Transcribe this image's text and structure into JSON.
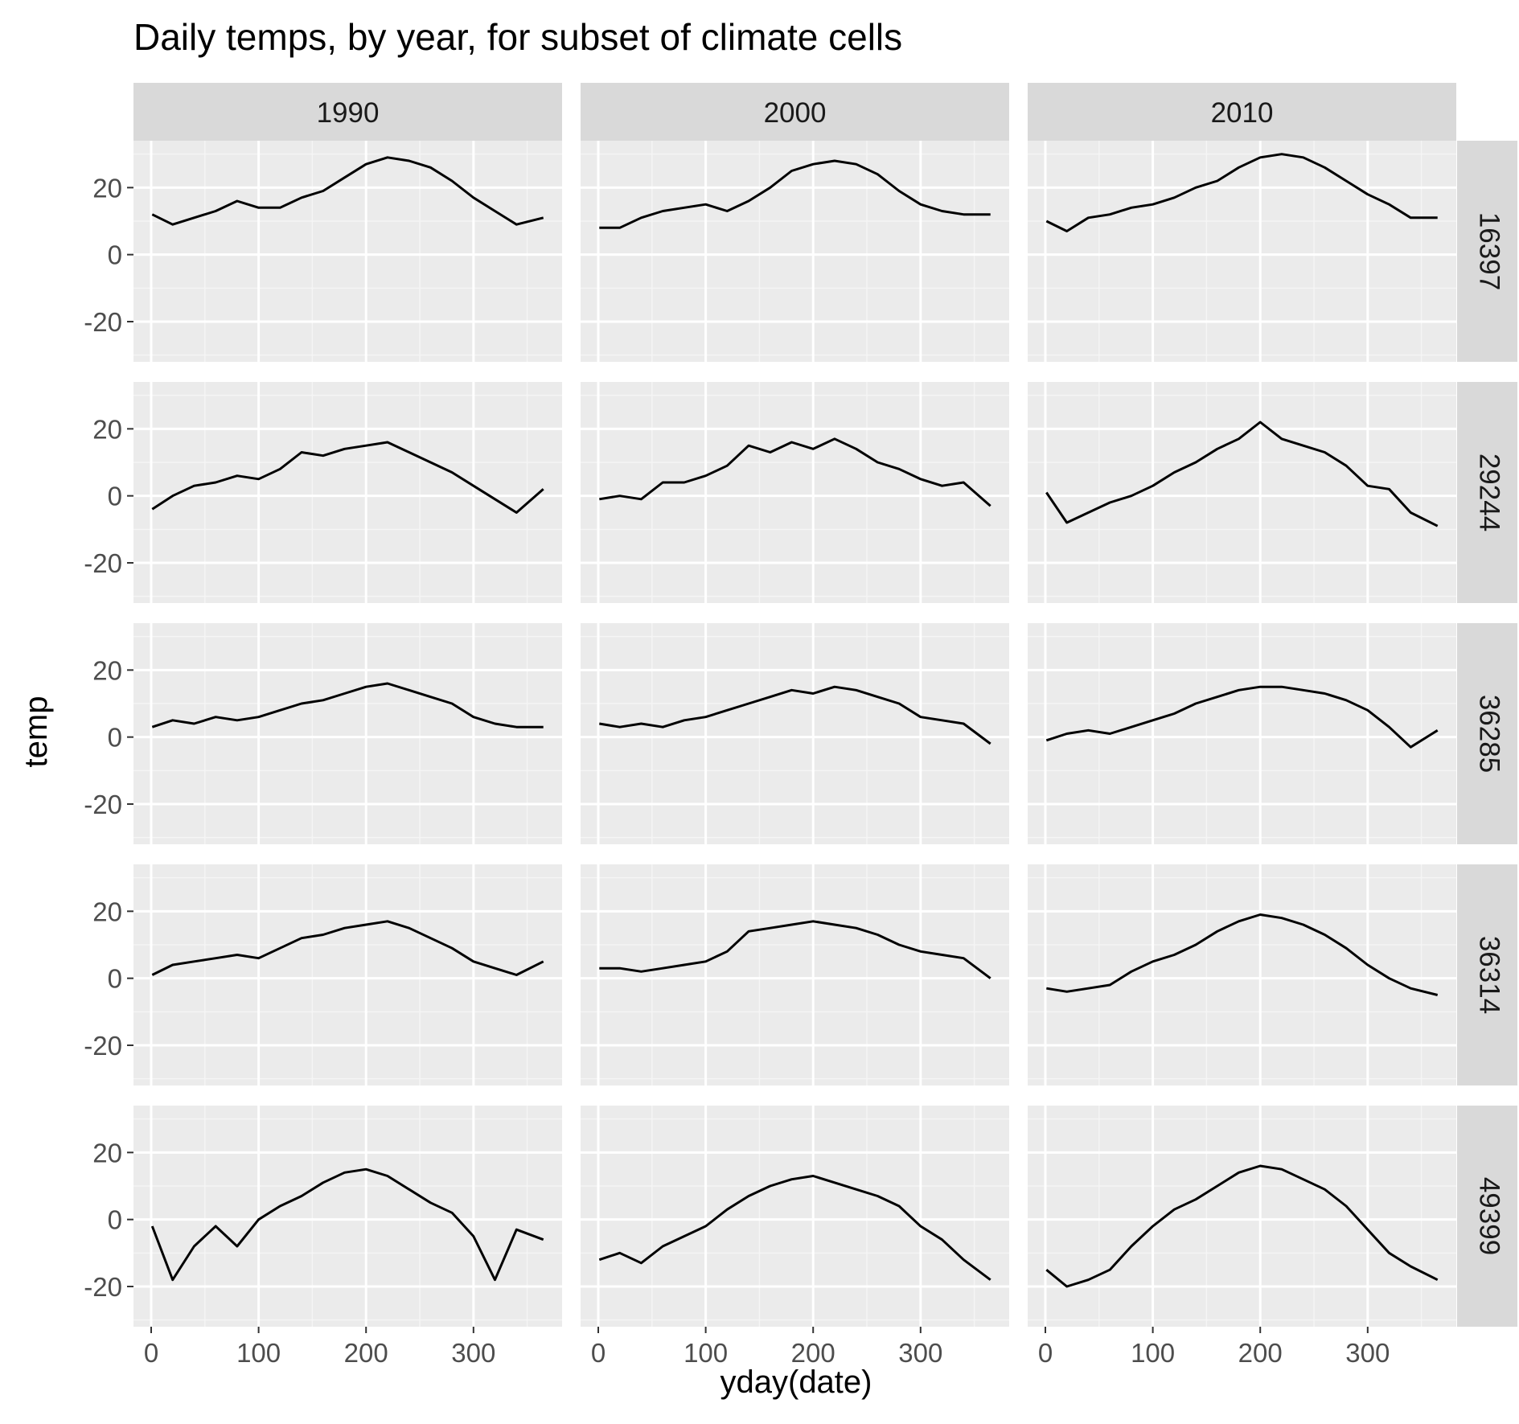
{
  "chart_data": {
    "type": "line",
    "title": "Daily temps, by year, for subset of climate cells",
    "xlabel": "yday(date)",
    "ylabel": "temp",
    "xlim": [
      0,
      366
    ],
    "ylim": [
      -32,
      34
    ],
    "x_ticks": [
      0,
      100,
      200,
      300
    ],
    "y_ticks": [
      -20,
      0,
      20
    ],
    "facet_cols": [
      "1990",
      "2000",
      "2010"
    ],
    "facet_rows": [
      "16397",
      "29244",
      "36285",
      "36314",
      "49399"
    ],
    "line_color": "#000000",
    "grid": true,
    "panel_background": "#ebebeb",
    "strip_background": "#d9d9d9",
    "legend": "none",
    "series_note_x": [
      1,
      20,
      40,
      60,
      80,
      100,
      120,
      140,
      160,
      180,
      200,
      220,
      240,
      260,
      280,
      300,
      320,
      340,
      365
    ],
    "panels": [
      {
        "row": "16397",
        "col": "1990",
        "values": [
          12,
          9,
          11,
          13,
          16,
          14,
          14,
          17,
          19,
          23,
          27,
          29,
          28,
          26,
          22,
          17,
          13,
          9,
          11
        ]
      },
      {
        "row": "16397",
        "col": "2000",
        "values": [
          8,
          8,
          11,
          13,
          14,
          15,
          13,
          16,
          20,
          25,
          27,
          28,
          27,
          24,
          19,
          15,
          13,
          12,
          12
        ]
      },
      {
        "row": "16397",
        "col": "2010",
        "values": [
          10,
          7,
          11,
          12,
          14,
          15,
          17,
          20,
          22,
          26,
          29,
          30,
          29,
          26,
          22,
          18,
          15,
          11,
          11
        ]
      },
      {
        "row": "29244",
        "col": "1990",
        "values": [
          -4,
          0,
          3,
          4,
          6,
          5,
          8,
          13,
          12,
          14,
          15,
          16,
          13,
          10,
          7,
          3,
          -1,
          -5,
          2
        ]
      },
      {
        "row": "29244",
        "col": "2000",
        "values": [
          -1,
          0,
          -1,
          4,
          4,
          6,
          9,
          15,
          13,
          16,
          14,
          17,
          14,
          10,
          8,
          5,
          3,
          4,
          -3
        ]
      },
      {
        "row": "29244",
        "col": "2010",
        "values": [
          1,
          -8,
          -5,
          -2,
          0,
          3,
          7,
          10,
          14,
          17,
          22,
          17,
          15,
          13,
          9,
          3,
          2,
          -5,
          -9
        ]
      },
      {
        "row": "36285",
        "col": "1990",
        "values": [
          3,
          5,
          4,
          6,
          5,
          6,
          8,
          10,
          11,
          13,
          15,
          16,
          14,
          12,
          10,
          6,
          4,
          3,
          3
        ]
      },
      {
        "row": "36285",
        "col": "2000",
        "values": [
          4,
          3,
          4,
          3,
          5,
          6,
          8,
          10,
          12,
          14,
          13,
          15,
          14,
          12,
          10,
          6,
          5,
          4,
          -2
        ]
      },
      {
        "row": "36285",
        "col": "2010",
        "values": [
          -1,
          1,
          2,
          1,
          3,
          5,
          7,
          10,
          12,
          14,
          15,
          15,
          14,
          13,
          11,
          8,
          3,
          -3,
          2
        ]
      },
      {
        "row": "36314",
        "col": "1990",
        "values": [
          1,
          4,
          5,
          6,
          7,
          6,
          9,
          12,
          13,
          15,
          16,
          17,
          15,
          12,
          9,
          5,
          3,
          1,
          5
        ]
      },
      {
        "row": "36314",
        "col": "2000",
        "values": [
          3,
          3,
          2,
          3,
          4,
          5,
          8,
          14,
          15,
          16,
          17,
          16,
          15,
          13,
          10,
          8,
          7,
          6,
          0
        ]
      },
      {
        "row": "36314",
        "col": "2010",
        "values": [
          -3,
          -4,
          -3,
          -2,
          2,
          5,
          7,
          10,
          14,
          17,
          19,
          18,
          16,
          13,
          9,
          4,
          0,
          -3,
          -5
        ]
      },
      {
        "row": "49399",
        "col": "1990",
        "values": [
          -2,
          -18,
          -8,
          -2,
          -8,
          0,
          4,
          7,
          11,
          14,
          15,
          13,
          9,
          5,
          2,
          -5,
          -18,
          -3,
          -6
        ]
      },
      {
        "row": "49399",
        "col": "2000",
        "values": [
          -12,
          -10,
          -13,
          -8,
          -5,
          -2,
          3,
          7,
          10,
          12,
          13,
          11,
          9,
          7,
          4,
          -2,
          -6,
          -12,
          -18
        ]
      },
      {
        "row": "49399",
        "col": "2010",
        "values": [
          -15,
          -20,
          -18,
          -15,
          -8,
          -2,
          3,
          6,
          10,
          14,
          16,
          15,
          12,
          9,
          4,
          -3,
          -10,
          -14,
          -18
        ]
      }
    ]
  }
}
